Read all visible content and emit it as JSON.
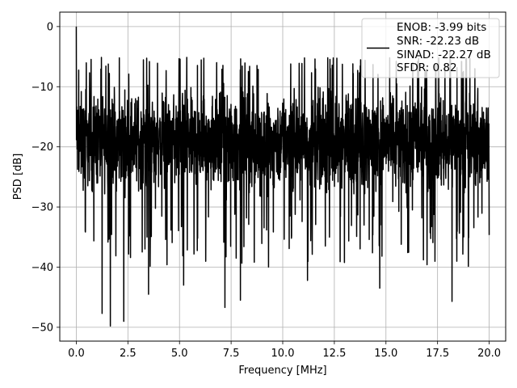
{
  "chart_data": {
    "type": "line",
    "title": "",
    "xlabel": "Frequency [MHz]",
    "ylabel": "PSD [dB]",
    "xlim": [
      -0.8,
      20.8
    ],
    "ylim": [
      -52.3,
      2.4
    ],
    "xticks": [
      0,
      2.5,
      5,
      7.5,
      10,
      12.5,
      15,
      17.5,
      20
    ],
    "xtick_labels": [
      "0.0",
      "2.5",
      "5.0",
      "7.5",
      "10.0",
      "12.5",
      "15.0",
      "17.5",
      "20.0"
    ],
    "yticks": [
      0,
      -10,
      -20,
      -30,
      -40,
      -50
    ],
    "ytick_labels": [
      "0",
      "−10",
      "−20",
      "−30",
      "−40",
      "−50"
    ],
    "grid": true,
    "legend_position": "top-right",
    "legend_entries": [
      "ENOB: -3.99 bits",
      "SNR: -22.23 dB",
      "SINAD: -22.27 dB",
      "SFDR: 0.82"
    ],
    "series": [
      {
        "color": "#000000",
        "x_range": [
          0,
          20
        ],
        "typical_band": [
          -30,
          -8
        ],
        "peak_max": 0,
        "spectrum_min": -49.8,
        "notable_points": [
          {
            "x": 0.0,
            "y": 0.0
          },
          {
            "x": 0.05,
            "y": -17.0
          },
          {
            "x": 1.25,
            "y": -47.7
          },
          {
            "x": 1.65,
            "y": -49.8
          },
          {
            "x": 2.3,
            "y": -49.0
          },
          {
            "x": 3.5,
            "y": -44.5
          },
          {
            "x": 5.2,
            "y": -43.0
          },
          {
            "x": 7.2,
            "y": -46.7
          },
          {
            "x": 7.95,
            "y": -45.5
          },
          {
            "x": 11.2,
            "y": -42.2
          },
          {
            "x": 14.7,
            "y": -43.5
          },
          {
            "x": 18.2,
            "y": -45.7
          },
          {
            "x": 6.8,
            "y": -6.0
          },
          {
            "x": 16.3,
            "y": -6.0
          },
          {
            "x": 18.1,
            "y": -4.0
          }
        ]
      }
    ]
  }
}
